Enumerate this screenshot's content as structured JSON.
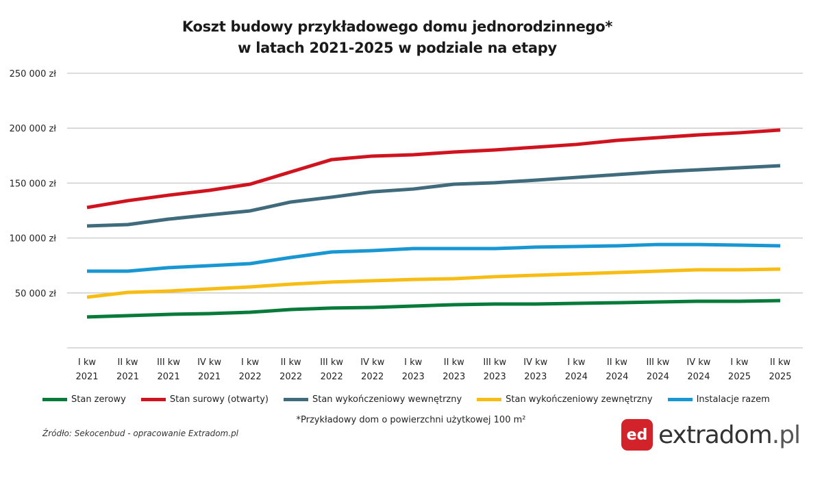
{
  "chart_data": {
    "type": "line",
    "title_line1": "Koszt budowy przykładowego domu jednorodzinnego*",
    "title_line2": "w latach 2021-2025 w podziale na etapy",
    "xlabel": "",
    "ylabel": "",
    "ylim": [
      0,
      250000
    ],
    "yticks": [
      0,
      50000,
      100000,
      150000,
      200000,
      250000
    ],
    "ytick_labels": [
      "",
      "50 000 zł",
      "100 000 zł",
      "150 000 zł",
      "200 000 zł",
      "250 000 zł"
    ],
    "grid": true,
    "legend_position": "bottom",
    "categories": [
      [
        "I kw",
        "2021"
      ],
      [
        "II kw",
        "2021"
      ],
      [
        "III kw",
        "2021"
      ],
      [
        "IV kw",
        "2021"
      ],
      [
        "I kw",
        "2022"
      ],
      [
        "II kw",
        "2022"
      ],
      [
        "III kw",
        "2022"
      ],
      [
        "IV kw",
        "2022"
      ],
      [
        "I kw",
        "2023"
      ],
      [
        "II kw",
        "2023"
      ],
      [
        "III kw",
        "2023"
      ],
      [
        "IV kw",
        "2023"
      ],
      [
        "I kw",
        "2024"
      ],
      [
        "II kw",
        "2024"
      ],
      [
        "III kw",
        "2024"
      ],
      [
        "IV kw",
        "2024"
      ],
      [
        "I kw",
        "2025"
      ],
      [
        "II kw",
        "2025"
      ]
    ],
    "series": [
      {
        "name": "Stan zerowy",
        "color": "#087a3a",
        "values": [
          28100,
          29300,
          30500,
          31200,
          32400,
          34900,
          36200,
          36800,
          38000,
          39300,
          39900,
          39900,
          40500,
          41100,
          41800,
          42400,
          42400,
          43000
        ]
      },
      {
        "name": "Stan surowy (otwarty)",
        "color": "#d0141f",
        "values": [
          127800,
          134000,
          139000,
          143400,
          149000,
          160200,
          171400,
          174600,
          175800,
          178300,
          180200,
          182700,
          185200,
          188900,
          191400,
          193900,
          195800,
          198300
        ]
      },
      {
        "name": "Stan wykończeniowy wewnętrzny",
        "color": "#3f6b7c",
        "values": [
          111000,
          112200,
          117200,
          121000,
          124700,
          132800,
          137200,
          142100,
          144600,
          149000,
          150300,
          152700,
          155200,
          157700,
          160200,
          162100,
          164000,
          165800
        ]
      },
      {
        "name": "Stan wykończeniowy zewnętrzny",
        "color": "#f7bd14",
        "values": [
          46100,
          50500,
          51700,
          53600,
          55500,
          58000,
          59900,
          61100,
          62300,
          63000,
          64800,
          66100,
          67300,
          68600,
          69800,
          71100,
          71100,
          71700
        ]
      },
      {
        "name": "Instalacje razem",
        "color": "#1897d2",
        "values": [
          69800,
          69800,
          73000,
          74800,
          76700,
          82300,
          87300,
          88500,
          90400,
          90400,
          90400,
          91700,
          92300,
          92900,
          94100,
          94100,
          93500,
          92900
        ]
      }
    ]
  },
  "footnote": "*Przykładowy dom o powierzchni użytkowej 100 m²",
  "source": "Źródło: Sekocenbud - opracowanie Extradom.pl",
  "logo": {
    "mark": "ed",
    "text": "extradom",
    "suffix": ".pl",
    "color": "#d2232a"
  }
}
